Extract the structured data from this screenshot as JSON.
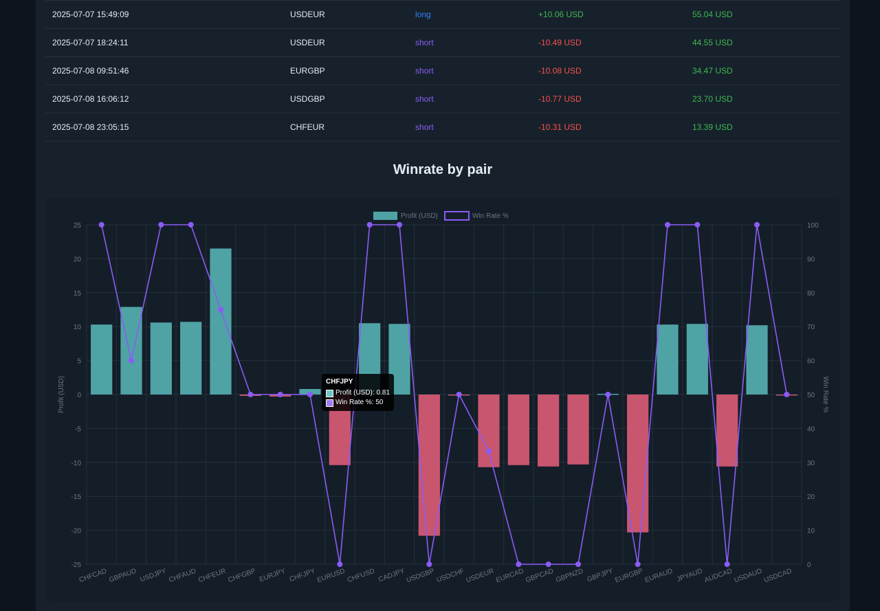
{
  "trades": [
    {
      "time": "2025-07-07 15:49:09",
      "pair": "USDEUR",
      "direction": "long",
      "pnl": "+10.06 USD",
      "balance": "55.04 USD"
    },
    {
      "time": "2025-07-07 18:24:11",
      "pair": "USDEUR",
      "direction": "short",
      "pnl": "-10.49 USD",
      "balance": "44.55 USD"
    },
    {
      "time": "2025-07-08 09:51:46",
      "pair": "EURGBP",
      "direction": "short",
      "pnl": "-10.08 USD",
      "balance": "34.47 USD"
    },
    {
      "time": "2025-07-08 16:06:12",
      "pair": "USDGBP",
      "direction": "short",
      "pnl": "-10.77 USD",
      "balance": "23.70 USD"
    },
    {
      "time": "2025-07-08 23:05:15",
      "pair": "CHFEUR",
      "direction": "short",
      "pnl": "-10.31 USD",
      "balance": "13.39 USD"
    }
  ],
  "section_title": "Winrate by pair",
  "tooltip": {
    "title": "CHFJPY",
    "profit_line": "Profit (USD): 0.81",
    "winrate_line": "Win Rate %: 50"
  },
  "colors": {
    "long": "#2f81f7",
    "short": "#8b5cf6",
    "loss": "#f85149",
    "gain": "#3fb950",
    "profit_bar": "#4fa3a5",
    "loss_bar": "#c9566f",
    "winrate_line": "#8b5cf6"
  },
  "chart_data": {
    "type": "bar",
    "categories": [
      "CHFCAD",
      "GBPAUD",
      "USDJPY",
      "CHFAUD",
      "CHFEUR",
      "CHFGBP",
      "EURJPY",
      "CHFJPY",
      "EURUSD",
      "CHFUSD",
      "CADJPY",
      "USDGBP",
      "USDCHF",
      "USDEUR",
      "EURCAD",
      "GBPCAD",
      "GBPNZD",
      "GBPJPY",
      "EURGBP",
      "EURAUD",
      "JPYAUD",
      "AUDCAD",
      "USDAUD",
      "USDCAD"
    ],
    "series": [
      {
        "name": "Profit (USD)",
        "type": "bar",
        "axis": "left",
        "values": [
          10.3,
          12.9,
          10.6,
          10.7,
          21.5,
          -0.2,
          -0.3,
          0.81,
          -10.4,
          10.5,
          10.4,
          -20.8,
          -0.1,
          -10.7,
          -10.4,
          -10.6,
          -10.3,
          0.1,
          -20.3,
          10.3,
          10.4,
          -10.6,
          10.2,
          -0.1
        ]
      },
      {
        "name": "Win Rate %",
        "type": "line",
        "axis": "right",
        "values": [
          100,
          60,
          100,
          100,
          75,
          50,
          50,
          50,
          0,
          100,
          100,
          0,
          50,
          33.3,
          0,
          0,
          0,
          50,
          0,
          100,
          100,
          0,
          100,
          50
        ]
      }
    ],
    "ylabel": "Profit (USD)",
    "y2label": "Win Rate %",
    "ylim": [
      -25,
      25
    ],
    "y2lim": [
      0,
      100
    ],
    "yticks": [
      "25",
      "20",
      "15",
      "10",
      "5",
      "0",
      "-5",
      "-10",
      "-15",
      "-20",
      "-25"
    ],
    "y2ticks": [
      "100",
      "90",
      "80",
      "70",
      "60",
      "50",
      "40",
      "30",
      "20",
      "10",
      "0"
    ],
    "legend_position": "top",
    "grid": true
  }
}
